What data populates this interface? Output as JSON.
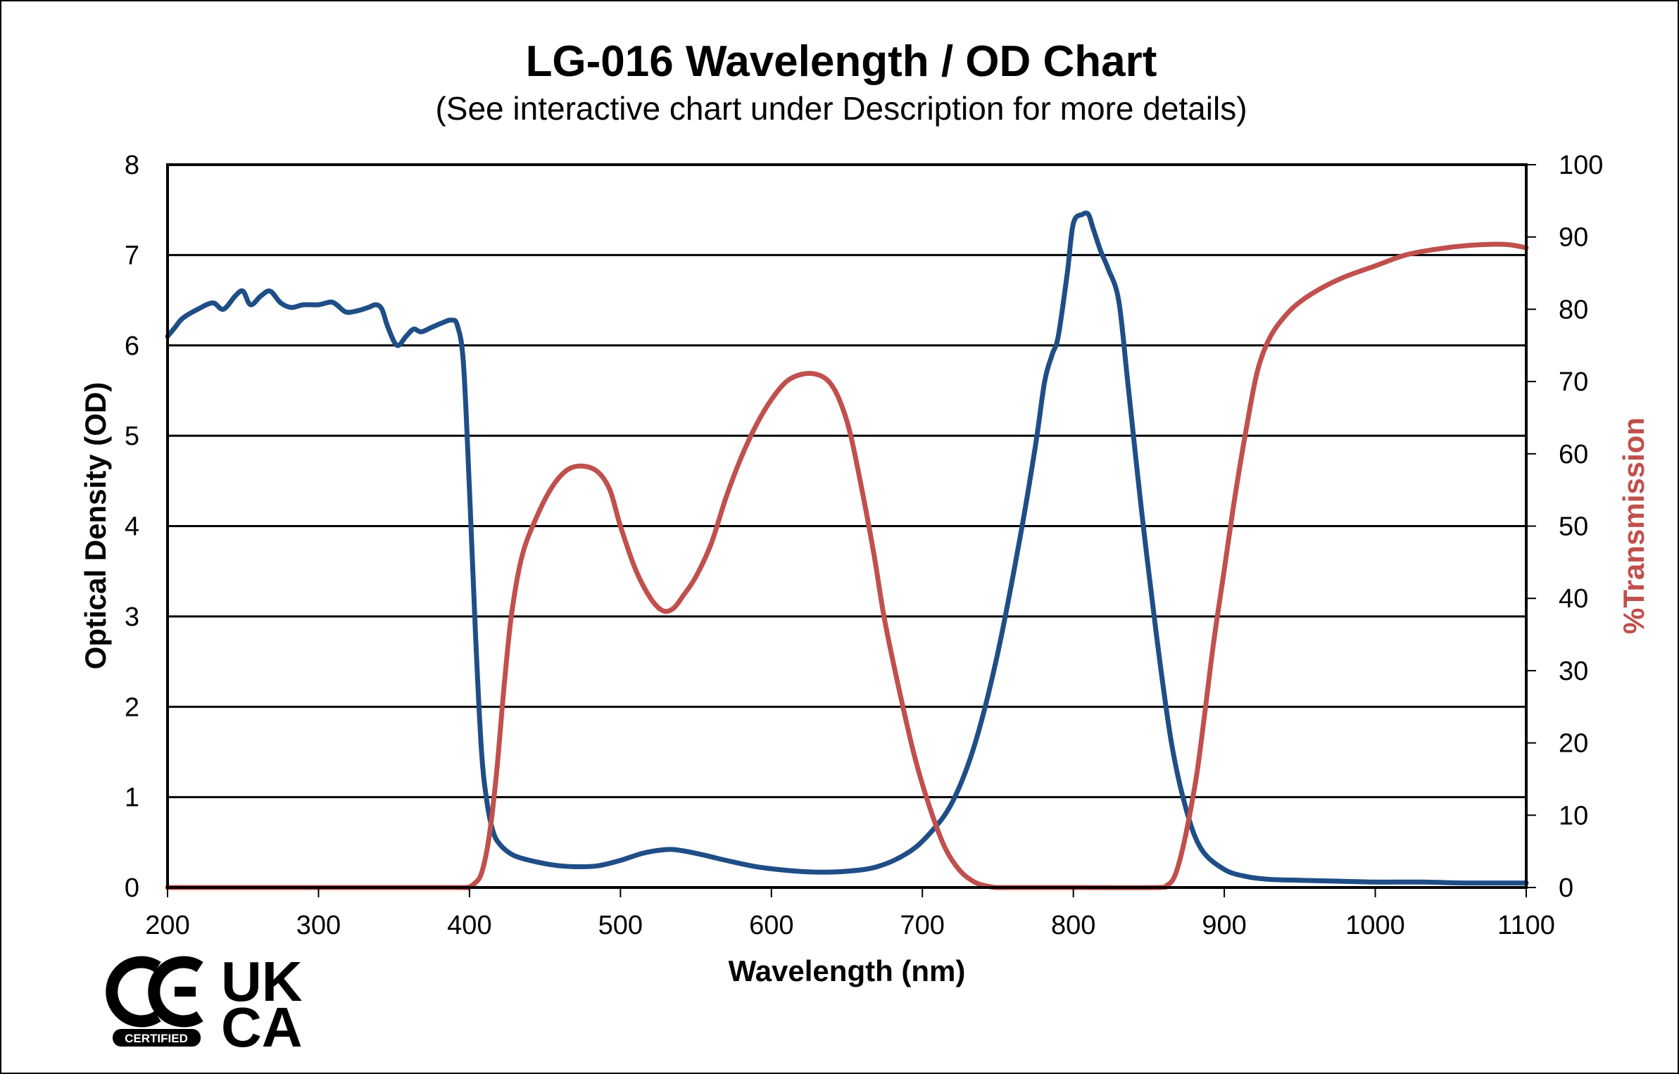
{
  "chart_data": {
    "type": "line",
    "title": "LG-016 Wavelength / OD Chart",
    "subtitle": "(See interactive chart under Description for more details)",
    "xlabel": "Wavelength (nm)",
    "ylabel": "Optical Density (OD)",
    "ylabel_right": "%Transmission",
    "xlim": [
      200,
      1100
    ],
    "ylim": [
      0,
      8
    ],
    "ylim_right": [
      0,
      100
    ],
    "x_ticks": [
      "200",
      "300",
      "400",
      "500",
      "600",
      "700",
      "800",
      "900",
      "1000",
      "1100"
    ],
    "y_ticks": [
      "0",
      "1",
      "2",
      "3",
      "4",
      "5",
      "6",
      "7",
      "8"
    ],
    "y_ticks_right": [
      "0",
      "10",
      "20",
      "30",
      "40",
      "50",
      "60",
      "70",
      "80",
      "90",
      "100"
    ],
    "grid": true,
    "colors": {
      "od": "#1f4e87",
      "transmission": "#c0504d"
    },
    "series": [
      {
        "axis": "left",
        "x": [
          200,
          205,
          210,
          220,
          230,
          237,
          245,
          250,
          255,
          262,
          268,
          275,
          282,
          290,
          300,
          308,
          312,
          318,
          325,
          333,
          338,
          342,
          346,
          352,
          358,
          363,
          368,
          375,
          382,
          388,
          392,
          396,
          400,
          404,
          408,
          412,
          416,
          420,
          425,
          430,
          440,
          455,
          470,
          485,
          500,
          515,
          530,
          540,
          555,
          570,
          590,
          610,
          630,
          650,
          670,
          690,
          705,
          720,
          735,
          750,
          765,
          775,
          781,
          786,
          790,
          796,
          800,
          806,
          810,
          813,
          818,
          823,
          830,
          836,
          845,
          855,
          865,
          875,
          885,
          900,
          915,
          930,
          950,
          975,
          1000,
          1030,
          1060,
          1090,
          1100
        ],
        "y": [
          6.1,
          6.2,
          6.3,
          6.4,
          6.47,
          6.4,
          6.55,
          6.6,
          6.45,
          6.55,
          6.6,
          6.47,
          6.42,
          6.45,
          6.45,
          6.48,
          6.45,
          6.37,
          6.38,
          6.42,
          6.45,
          6.4,
          6.2,
          6.0,
          6.1,
          6.18,
          6.15,
          6.2,
          6.25,
          6.28,
          6.22,
          5.8,
          4.4,
          2.8,
          1.5,
          0.9,
          0.6,
          0.48,
          0.4,
          0.35,
          0.3,
          0.25,
          0.23,
          0.24,
          0.3,
          0.38,
          0.42,
          0.41,
          0.36,
          0.3,
          0.23,
          0.19,
          0.17,
          0.18,
          0.23,
          0.38,
          0.6,
          0.95,
          1.6,
          2.6,
          3.9,
          4.9,
          5.6,
          5.9,
          6.1,
          6.8,
          7.35,
          7.45,
          7.45,
          7.3,
          7.05,
          6.85,
          6.5,
          5.6,
          4.2,
          2.8,
          1.6,
          0.85,
          0.42,
          0.2,
          0.12,
          0.09,
          0.08,
          0.07,
          0.06,
          0.06,
          0.05,
          0.05,
          0.05
        ]
      },
      {
        "axis": "right",
        "x": [
          200,
          300,
          390,
          398,
          403,
          408,
          413,
          418,
          423,
          428,
          435,
          445,
          455,
          465,
          475,
          485,
          493,
          500,
          510,
          520,
          528,
          535,
          542,
          550,
          560,
          570,
          580,
          590,
          600,
          610,
          620,
          630,
          638,
          645,
          652,
          660,
          668,
          675,
          685,
          695,
          705,
          715,
          725,
          735,
          745,
          750,
          760,
          800,
          855,
          862,
          867,
          872,
          877,
          882,
          887,
          893,
          900,
          907,
          915,
          922,
          930,
          940,
          950,
          965,
          980,
          1000,
          1020,
          1040,
          1060,
          1080,
          1090,
          1100
        ],
        "y": [
          0,
          0,
          0,
          0,
          0.5,
          2,
          7,
          16,
          28,
          38,
          46,
          51.5,
          55.5,
          57.8,
          58.3,
          57.5,
          55,
          50,
          44,
          40,
          38.3,
          38.6,
          40.5,
          43,
          47.5,
          54,
          59.5,
          64,
          67.5,
          70,
          71,
          71,
          70,
          67.5,
          63,
          55,
          46,
          37,
          27,
          18,
          11,
          5.5,
          2.3,
          0.7,
          0.1,
          0,
          0,
          0,
          0,
          0.3,
          1.5,
          5,
          10,
          16,
          24,
          34,
          44,
          54,
          64,
          71.5,
          76,
          79,
          81,
          83,
          84.5,
          86,
          87.5,
          88.3,
          88.8,
          89,
          88.9,
          88.5
        ]
      }
    ]
  },
  "logos": {
    "ce_text": "CE",
    "ce_badge": "CERTIFIED",
    "ukca_line1": "UK",
    "ukca_line2": "CA"
  }
}
